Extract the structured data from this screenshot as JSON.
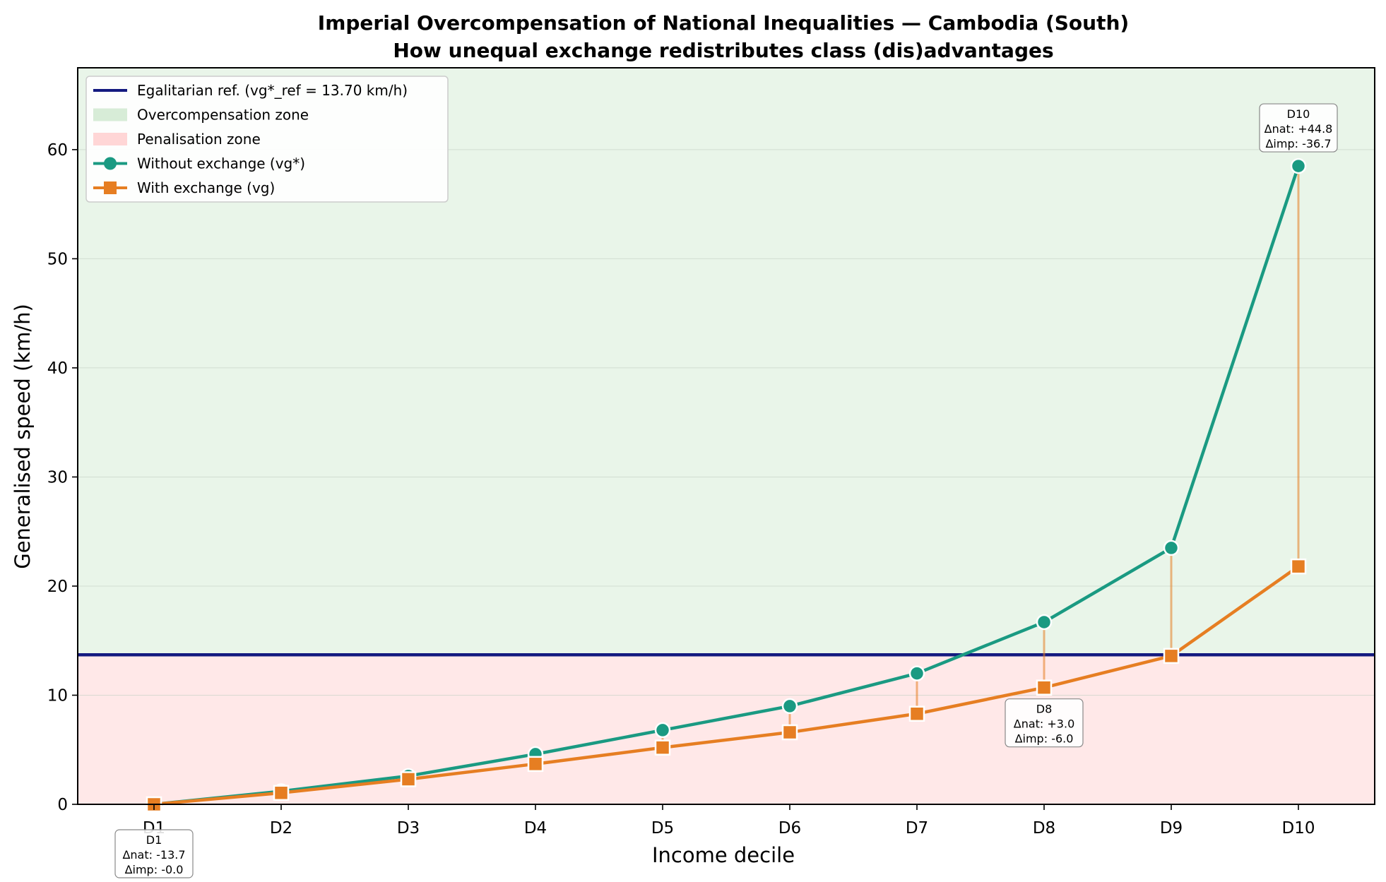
{
  "chart_data": {
    "type": "line",
    "title": "Imperial Overcompensation of National Inequalities — Cambodia (South)",
    "subtitle": "How unequal exchange redistributes class (dis)advantages",
    "xlabel": "Income decile",
    "ylabel": "Generalised speed (km/h)",
    "categories": [
      "D1",
      "D2",
      "D3",
      "D4",
      "D5",
      "D6",
      "D7",
      "D8",
      "D9",
      "D10"
    ],
    "ylim": [
      0,
      67.5
    ],
    "yticks": [
      0,
      10,
      20,
      30,
      40,
      50,
      60
    ],
    "reference": {
      "value": 13.7,
      "label": "Egalitarian ref. (vg*_ref = 13.70 km/h)",
      "color": "#141a80"
    },
    "zones": [
      {
        "name": "Overcompensation zone",
        "from": 13.7,
        "to": 67.5,
        "color": "#d7ecd7"
      },
      {
        "name": "Penalisation zone",
        "from": 0,
        "to": 13.7,
        "color": "#ffd6d6"
      }
    ],
    "series": [
      {
        "name": "Without exchange (vg*)",
        "marker": "circle",
        "color": "#1a9a82",
        "values": [
          0.0,
          1.2,
          2.6,
          4.6,
          6.8,
          9.0,
          12.0,
          16.7,
          23.5,
          58.5
        ]
      },
      {
        "name": "With exchange (vg)",
        "marker": "square",
        "color": "#e67e22",
        "values": [
          0.0,
          1.05,
          2.3,
          3.7,
          5.2,
          6.6,
          8.3,
          10.7,
          13.6,
          21.8
        ]
      }
    ],
    "annotations": [
      {
        "decile": "D1",
        "lines": [
          "D1",
          "Δnat: -13.7",
          "Δimp: -0.0"
        ]
      },
      {
        "decile": "D8",
        "lines": [
          "D8",
          "Δnat: +3.0",
          "Δimp: -6.0"
        ]
      },
      {
        "decile": "D10",
        "lines": [
          "D10",
          "Δnat: +44.8",
          "Δimp: -36.7"
        ]
      }
    ],
    "grid": true,
    "legend_position": "top-left"
  }
}
